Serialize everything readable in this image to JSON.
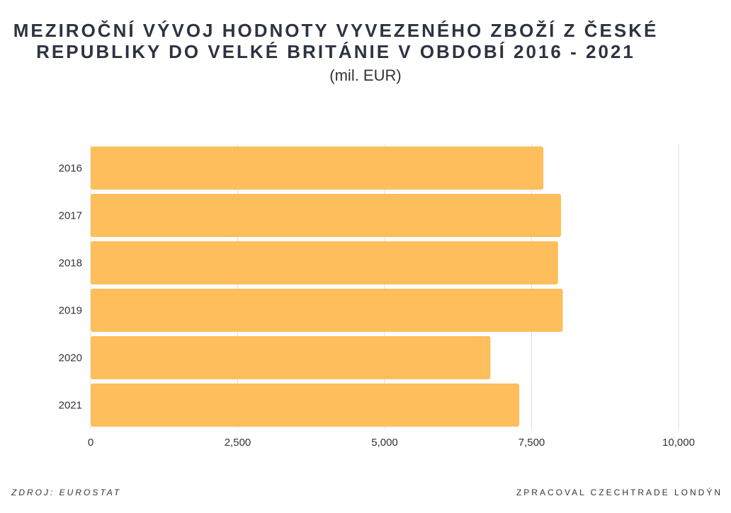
{
  "header": {
    "title_line1": "MEZIROČNÍ VÝVOJ HODNOTY VYVEZENÉHO ZBOŽÍ Z ČESKÉ",
    "title_line2": "REPUBLIKY DO VELKÉ BRITÁNIE V OBDOBÍ 2016 - 2021",
    "subtitle": "(mil. EUR)"
  },
  "footer": {
    "source": "ZDROJ: EUROSTAT",
    "credit": "ZPRACOVAL CZECHTRADE LONDÝN"
  },
  "chart_data": {
    "type": "bar",
    "orientation": "horizontal",
    "categories": [
      "2016",
      "2017",
      "2018",
      "2019",
      "2020",
      "2021"
    ],
    "values": [
      7700,
      8000,
      7950,
      8030,
      6800,
      7290
    ],
    "xlim": [
      0,
      10000
    ],
    "xticks": [
      0,
      2500,
      5000,
      7500,
      10000
    ],
    "xtick_labels": [
      "0",
      "2,500",
      "5,000",
      "7,500",
      "10,000"
    ],
    "grid": "vertical",
    "bar_color": "#fdbe5b",
    "grid_color": "#dddddd"
  }
}
